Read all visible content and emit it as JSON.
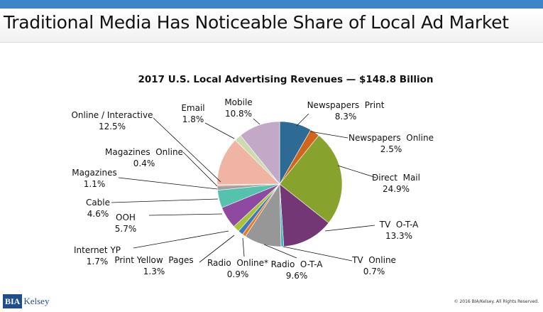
{
  "slide": {
    "title": "Traditional Media Has Noticeable Share of Local Ad Market",
    "logo_box": "BIA",
    "logo_word": "Kelsey",
    "copyright": "© 2016 BIA/Kelsey. All Rights Reserved.",
    "accent_color": "#3d85c6"
  },
  "chart_data": {
    "type": "pie",
    "title": "2017 U.S. Local Advertising Revenues — $148.8 Billion",
    "start_angle_deg": 0,
    "direction": "clockwise",
    "slices": [
      {
        "name": "Newspapers  Print",
        "value": 8.3,
        "label": "8.3%",
        "color": "#2e6b94"
      },
      {
        "name": "Newspapers  Online",
        "value": 2.5,
        "label": "2.5%",
        "color": "#d1651e"
      },
      {
        "name": "Direct  Mail",
        "value": 24.9,
        "label": "24.9%",
        "color": "#87a22d"
      },
      {
        "name": "TV  O-T-A",
        "value": 13.3,
        "label": "13.3%",
        "color": "#743776"
      },
      {
        "name": "TV  Online",
        "value": 0.7,
        "label": "0.7%",
        "color": "#3fb5be"
      },
      {
        "name": "Radio  O-T-A",
        "value": 9.6,
        "label": "9.6%",
        "color": "#979797"
      },
      {
        "name": "Radio  Online*",
        "value": 0.9,
        "label": "0.9%",
        "color": "#ec7a23"
      },
      {
        "name": "Print Yellow  Pages",
        "value": 1.3,
        "label": "1.3%",
        "color": "#3f78bb"
      },
      {
        "name": "Internet YP",
        "value": 1.7,
        "label": "1.7%",
        "color": "#a7c437"
      },
      {
        "name": "OOH",
        "value": 5.7,
        "label": "5.7%",
        "color": "#8e4aa0"
      },
      {
        "name": "Cable",
        "value": 4.6,
        "label": "4.6%",
        "color": "#54c2ad"
      },
      {
        "name": "Magazines",
        "value": 1.1,
        "label": "1.1%",
        "color": "#a1a1a1"
      },
      {
        "name": "Magazines  Online",
        "value": 0.4,
        "label": "0.4%",
        "color": "#f7b8a1"
      },
      {
        "name": "Online / Interactive",
        "value": 12.5,
        "label": "12.5%",
        "color": "#efb4a3"
      },
      {
        "name": "Email",
        "value": 1.8,
        "label": "1.8%",
        "color": "#cddcb0"
      },
      {
        "name": "Mobile",
        "value": 10.8,
        "label": "10.8%",
        "color": "#c3a9c8"
      }
    ]
  }
}
